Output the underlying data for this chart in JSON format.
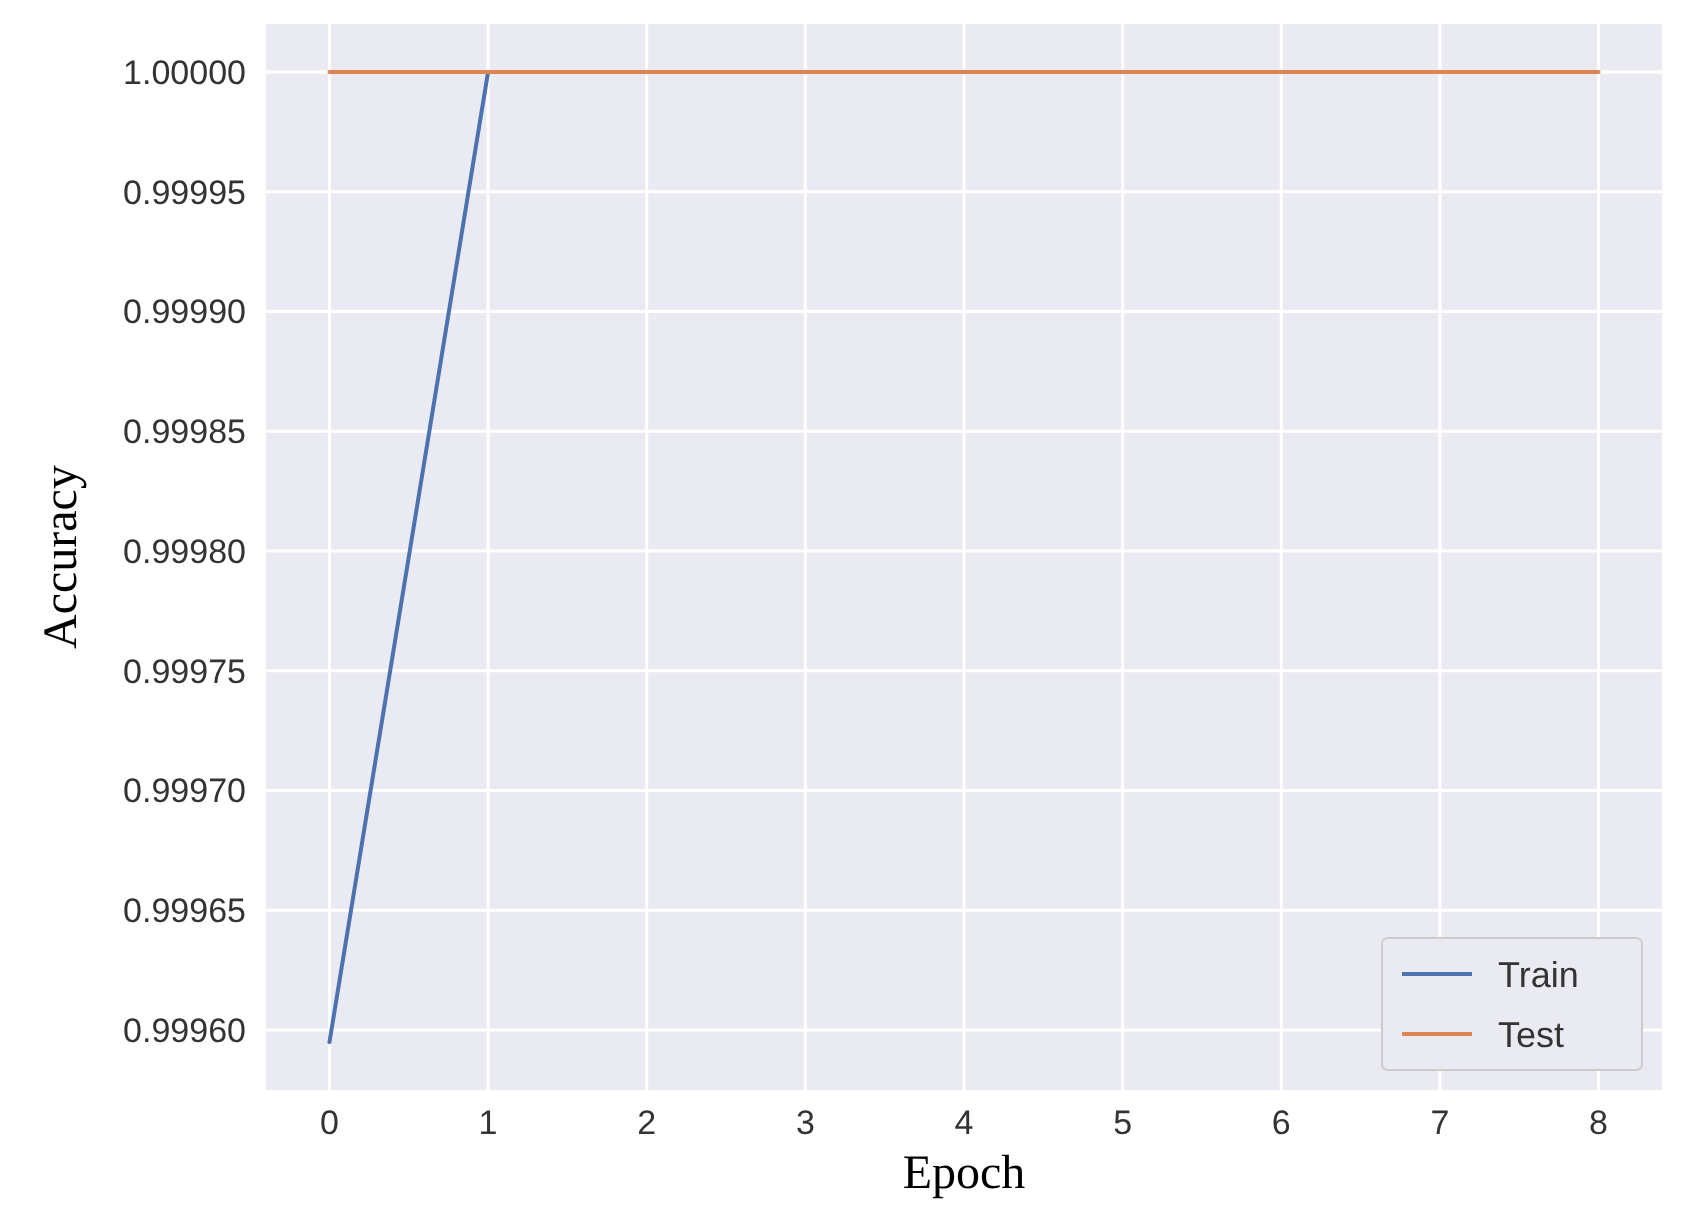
{
  "chart_data": {
    "type": "line",
    "xlabel": "Epoch",
    "ylabel": "Accuracy",
    "x": [
      0,
      1,
      2,
      3,
      4,
      5,
      6,
      7,
      8
    ],
    "series": [
      {
        "name": "Train",
        "color": "#4c72b0",
        "values": [
          0.999595,
          1,
          null,
          null,
          null,
          null,
          null,
          null,
          null
        ]
      },
      {
        "name": "Test",
        "color": "#dd8452",
        "values": [
          1,
          1,
          1,
          1,
          1,
          1,
          1,
          1,
          1
        ]
      }
    ],
    "xlim": [
      -0.4,
      8.4
    ],
    "xticks": [
      0,
      1,
      2,
      3,
      4,
      5,
      6,
      7,
      8
    ],
    "ylim": [
      0.999575,
      1.00002
    ],
    "yticks": [
      {
        "value": 0.9996,
        "label": "0.99960"
      },
      {
        "value": 0.99965,
        "label": "0.99965"
      },
      {
        "value": 0.9997,
        "label": "0.99970"
      },
      {
        "value": 0.99975,
        "label": "0.99975"
      },
      {
        "value": 0.9998,
        "label": "0.99980"
      },
      {
        "value": 0.99985,
        "label": "0.99985"
      },
      {
        "value": 0.9999,
        "label": "0.99990"
      },
      {
        "value": 0.99995,
        "label": "0.99995"
      },
      {
        "value": 1,
        "label": "1.00000"
      }
    ],
    "grid": true,
    "legend": "bottom right",
    "marker": "none",
    "line_style": "solid"
  }
}
